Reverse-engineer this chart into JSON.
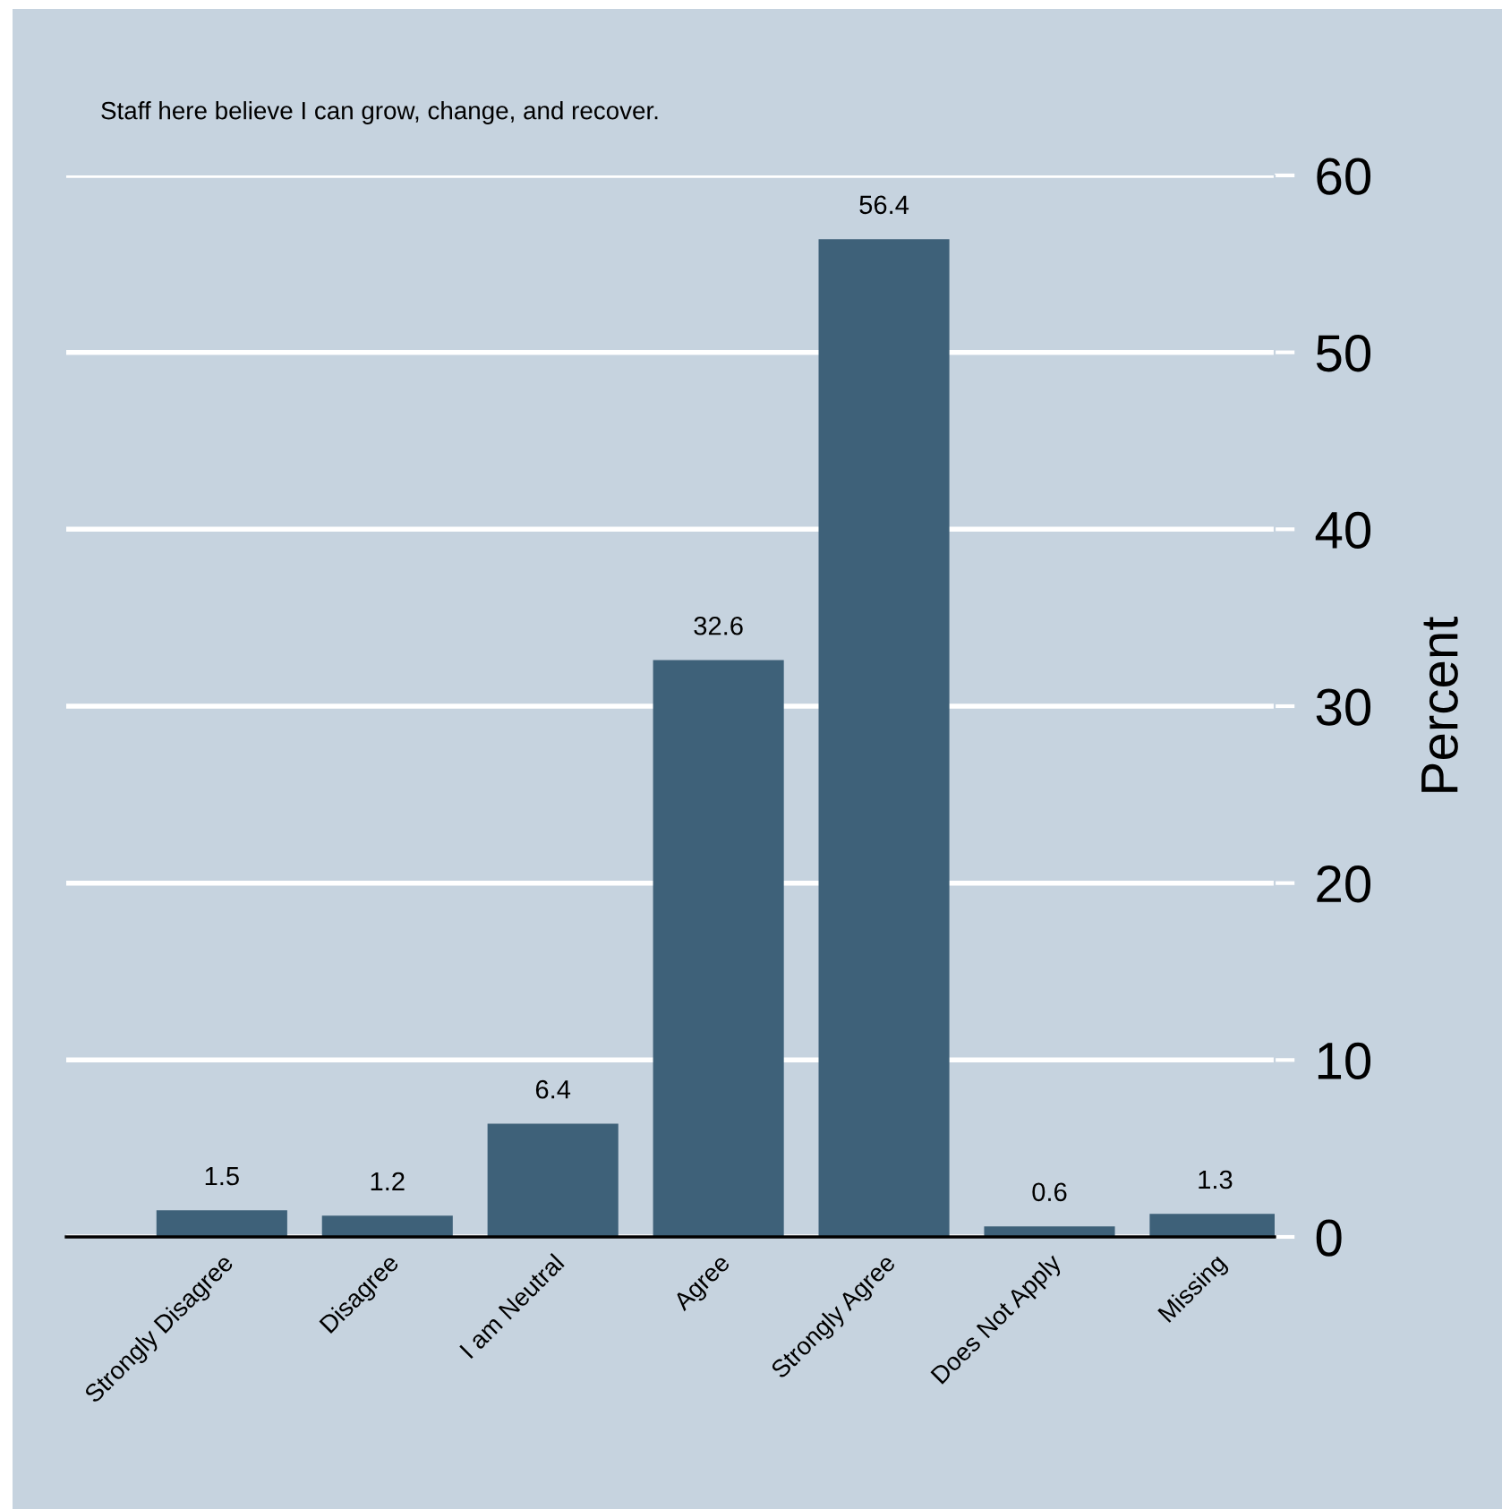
{
  "chart_data": {
    "type": "bar",
    "title": "Staff here believe I can grow, change, and recover.",
    "ylabel": "Percent",
    "categories": [
      "Strongly Disagree",
      "Disagree",
      "I am Neutral",
      "Agree",
      "Strongly Agree",
      "Does Not Apply",
      "Missing"
    ],
    "values": [
      1.5,
      1.2,
      6.4,
      32.6,
      56.4,
      0.6,
      1.3
    ],
    "color": "#3e6179",
    "ylim": [
      0,
      60
    ],
    "yticks": [
      0,
      10,
      20,
      30,
      40,
      50,
      60
    ],
    "grid": "y",
    "data_labels": true
  }
}
